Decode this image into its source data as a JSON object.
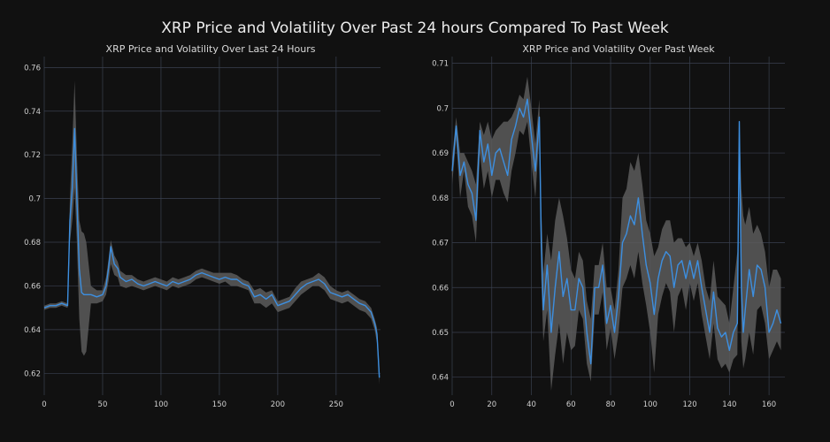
{
  "title": "XRP Price and Volatility Over Past 24 hours Compared To Past Week",
  "colors": {
    "background": "#111111",
    "price_line": "#3d8fe0",
    "volatility_band": "#5c5c5c",
    "grid": "#3a4150"
  },
  "chart_data": [
    {
      "type": "area",
      "title": "XRP Price and Volatility Over Last 24 Hours",
      "xlabel": "",
      "ylabel": "",
      "xlim": [
        0,
        288
      ],
      "ylim": [
        0.61,
        0.765
      ],
      "xticks": [
        0,
        50,
        100,
        150,
        200,
        250
      ],
      "yticks": [
        0.62,
        0.64,
        0.66,
        0.68,
        0.7,
        0.72,
        0.74,
        0.76
      ],
      "ytick_labels": [
        "0.62",
        "0.64",
        "0.66",
        "0.68",
        "0.7",
        "0.72",
        "0.74",
        "0.76"
      ],
      "grid": true,
      "series": [
        {
          "name": "price",
          "x": [
            0,
            5,
            10,
            15,
            20,
            22,
            24,
            26,
            28,
            30,
            32,
            34,
            36,
            40,
            45,
            50,
            53,
            55,
            57,
            60,
            63,
            65,
            70,
            75,
            80,
            85,
            90,
            95,
            100,
            105,
            110,
            115,
            120,
            125,
            130,
            135,
            140,
            145,
            150,
            155,
            160,
            165,
            170,
            175,
            180,
            185,
            190,
            195,
            200,
            205,
            210,
            215,
            220,
            225,
            230,
            235,
            240,
            245,
            250,
            255,
            260,
            265,
            270,
            275,
            280,
            283,
            285,
            286,
            287
          ],
          "values": [
            0.65,
            0.651,
            0.651,
            0.652,
            0.651,
            0.69,
            0.705,
            0.732,
            0.7,
            0.668,
            0.657,
            0.656,
            0.656,
            0.656,
            0.655,
            0.656,
            0.66,
            0.668,
            0.678,
            0.67,
            0.668,
            0.664,
            0.662,
            0.663,
            0.661,
            0.66,
            0.661,
            0.662,
            0.661,
            0.66,
            0.662,
            0.661,
            0.662,
            0.663,
            0.665,
            0.666,
            0.665,
            0.664,
            0.663,
            0.664,
            0.663,
            0.663,
            0.661,
            0.66,
            0.655,
            0.656,
            0.654,
            0.656,
            0.651,
            0.652,
            0.653,
            0.656,
            0.659,
            0.661,
            0.662,
            0.663,
            0.661,
            0.657,
            0.656,
            0.655,
            0.656,
            0.654,
            0.652,
            0.651,
            0.648,
            0.643,
            0.638,
            0.628,
            0.618
          ]
        },
        {
          "name": "volatility_upper",
          "x": [
            0,
            5,
            10,
            15,
            20,
            22,
            24,
            26,
            28,
            30,
            32,
            34,
            36,
            40,
            45,
            50,
            53,
            55,
            57,
            60,
            63,
            65,
            70,
            75,
            80,
            85,
            90,
            95,
            100,
            105,
            110,
            115,
            120,
            125,
            130,
            135,
            140,
            145,
            150,
            155,
            160,
            165,
            170,
            175,
            180,
            185,
            190,
            195,
            200,
            205,
            210,
            215,
            220,
            225,
            230,
            235,
            240,
            245,
            250,
            255,
            260,
            265,
            270,
            275,
            280,
            283,
            285,
            286,
            287
          ],
          "values": [
            0.651,
            0.652,
            0.652,
            0.653,
            0.652,
            0.7,
            0.725,
            0.754,
            0.72,
            0.69,
            0.685,
            0.684,
            0.68,
            0.66,
            0.658,
            0.658,
            0.664,
            0.672,
            0.681,
            0.674,
            0.671,
            0.667,
            0.665,
            0.665,
            0.663,
            0.662,
            0.663,
            0.664,
            0.663,
            0.662,
            0.664,
            0.663,
            0.664,
            0.665,
            0.667,
            0.668,
            0.667,
            0.666,
            0.666,
            0.666,
            0.666,
            0.665,
            0.663,
            0.662,
            0.658,
            0.659,
            0.657,
            0.658,
            0.653,
            0.654,
            0.655,
            0.659,
            0.662,
            0.663,
            0.664,
            0.666,
            0.664,
            0.66,
            0.658,
            0.657,
            0.658,
            0.656,
            0.654,
            0.653,
            0.65,
            0.645,
            0.641,
            0.632,
            0.622
          ]
        },
        {
          "name": "volatility_lower",
          "x": [
            0,
            5,
            10,
            15,
            20,
            22,
            24,
            26,
            28,
            30,
            32,
            34,
            36,
            40,
            45,
            50,
            53,
            55,
            57,
            60,
            63,
            65,
            70,
            75,
            80,
            85,
            90,
            95,
            100,
            105,
            110,
            115,
            120,
            125,
            130,
            135,
            140,
            145,
            150,
            155,
            160,
            165,
            170,
            175,
            180,
            185,
            190,
            195,
            200,
            205,
            210,
            215,
            220,
            225,
            230,
            235,
            240,
            245,
            250,
            255,
            260,
            265,
            270,
            275,
            280,
            283,
            285,
            286,
            287
          ],
          "values": [
            0.649,
            0.65,
            0.65,
            0.651,
            0.65,
            0.68,
            0.69,
            0.705,
            0.68,
            0.645,
            0.63,
            0.628,
            0.63,
            0.652,
            0.652,
            0.653,
            0.656,
            0.662,
            0.67,
            0.665,
            0.664,
            0.66,
            0.659,
            0.66,
            0.659,
            0.658,
            0.659,
            0.66,
            0.659,
            0.658,
            0.66,
            0.659,
            0.66,
            0.661,
            0.663,
            0.664,
            0.663,
            0.662,
            0.661,
            0.662,
            0.66,
            0.66,
            0.659,
            0.658,
            0.652,
            0.652,
            0.65,
            0.652,
            0.648,
            0.649,
            0.65,
            0.653,
            0.656,
            0.658,
            0.66,
            0.66,
            0.658,
            0.654,
            0.653,
            0.652,
            0.653,
            0.651,
            0.649,
            0.648,
            0.645,
            0.64,
            0.634,
            0.623,
            0.615
          ]
        }
      ]
    },
    {
      "type": "area",
      "title": "XRP Price and Volatility Over Past Week",
      "xlabel": "",
      "ylabel": "",
      "xlim": [
        0,
        168
      ],
      "ylim": [
        0.636,
        0.7115
      ],
      "xticks": [
        0,
        20,
        40,
        60,
        80,
        100,
        120,
        140,
        160
      ],
      "yticks": [
        0.64,
        0.65,
        0.66,
        0.67,
        0.68,
        0.69,
        0.7,
        0.71
      ],
      "ytick_labels": [
        "0.64",
        "0.65",
        "0.66",
        "0.67",
        "0.68",
        "0.69",
        "0.7",
        "0.71"
      ],
      "grid": true,
      "series": [
        {
          "name": "price",
          "x": [
            0,
            2,
            4,
            6,
            8,
            10,
            12,
            14,
            16,
            18,
            20,
            22,
            24,
            26,
            28,
            30,
            32,
            34,
            36,
            38,
            40,
            42,
            44,
            45,
            46,
            48,
            50,
            52,
            54,
            56,
            58,
            60,
            62,
            64,
            66,
            68,
            70,
            72,
            74,
            76,
            78,
            80,
            82,
            84,
            86,
            88,
            90,
            92,
            94,
            96,
            98,
            100,
            102,
            104,
            106,
            108,
            110,
            112,
            114,
            116,
            118,
            120,
            122,
            124,
            126,
            128,
            130,
            132,
            134,
            136,
            138,
            140,
            142,
            144,
            145,
            146,
            147,
            148,
            150,
            152,
            154,
            156,
            158,
            160,
            162,
            164,
            166
          ],
          "values": [
            0.686,
            0.696,
            0.685,
            0.688,
            0.683,
            0.681,
            0.675,
            0.695,
            0.688,
            0.692,
            0.685,
            0.69,
            0.691,
            0.688,
            0.685,
            0.693,
            0.696,
            0.7,
            0.698,
            0.702,
            0.694,
            0.686,
            0.698,
            0.67,
            0.655,
            0.665,
            0.65,
            0.66,
            0.668,
            0.658,
            0.662,
            0.655,
            0.655,
            0.662,
            0.66,
            0.65,
            0.643,
            0.66,
            0.66,
            0.665,
            0.652,
            0.656,
            0.65,
            0.658,
            0.67,
            0.672,
            0.676,
            0.674,
            0.68,
            0.672,
            0.665,
            0.661,
            0.654,
            0.662,
            0.666,
            0.668,
            0.667,
            0.66,
            0.665,
            0.666,
            0.662,
            0.666,
            0.662,
            0.666,
            0.66,
            0.655,
            0.65,
            0.659,
            0.651,
            0.649,
            0.65,
            0.646,
            0.65,
            0.652,
            0.697,
            0.66,
            0.65,
            0.655,
            0.664,
            0.658,
            0.665,
            0.664,
            0.66,
            0.65,
            0.652,
            0.655,
            0.652
          ]
        },
        {
          "name": "volatility_upper",
          "x": [
            0,
            2,
            4,
            6,
            8,
            10,
            12,
            14,
            16,
            18,
            20,
            22,
            24,
            26,
            28,
            30,
            32,
            34,
            36,
            38,
            40,
            42,
            44,
            45,
            46,
            48,
            50,
            52,
            54,
            56,
            58,
            60,
            62,
            64,
            66,
            68,
            70,
            72,
            74,
            76,
            78,
            80,
            82,
            84,
            86,
            88,
            90,
            92,
            94,
            96,
            98,
            100,
            102,
            104,
            106,
            108,
            110,
            112,
            114,
            116,
            118,
            120,
            122,
            124,
            126,
            128,
            130,
            132,
            134,
            136,
            138,
            140,
            142,
            144,
            145,
            146,
            147,
            148,
            150,
            152,
            154,
            156,
            158,
            160,
            162,
            164,
            166
          ],
          "values": [
            0.689,
            0.698,
            0.69,
            0.69,
            0.688,
            0.686,
            0.683,
            0.697,
            0.694,
            0.697,
            0.693,
            0.695,
            0.696,
            0.697,
            0.697,
            0.698,
            0.7,
            0.703,
            0.702,
            0.707,
            0.7,
            0.692,
            0.702,
            0.678,
            0.663,
            0.672,
            0.666,
            0.675,
            0.68,
            0.676,
            0.671,
            0.664,
            0.662,
            0.668,
            0.666,
            0.657,
            0.653,
            0.665,
            0.665,
            0.67,
            0.66,
            0.66,
            0.655,
            0.664,
            0.68,
            0.682,
            0.688,
            0.686,
            0.69,
            0.683,
            0.675,
            0.672,
            0.667,
            0.669,
            0.673,
            0.675,
            0.675,
            0.67,
            0.671,
            0.671,
            0.669,
            0.67,
            0.667,
            0.67,
            0.666,
            0.66,
            0.657,
            0.666,
            0.658,
            0.657,
            0.656,
            0.652,
            0.66,
            0.668,
            0.697,
            0.682,
            0.676,
            0.674,
            0.678,
            0.672,
            0.674,
            0.672,
            0.668,
            0.66,
            0.664,
            0.664,
            0.662
          ]
        },
        {
          "name": "volatility_lower",
          "x": [
            0,
            2,
            4,
            6,
            8,
            10,
            12,
            14,
            16,
            18,
            20,
            22,
            24,
            26,
            28,
            30,
            32,
            34,
            36,
            38,
            40,
            42,
            44,
            45,
            46,
            48,
            50,
            52,
            54,
            56,
            58,
            60,
            62,
            64,
            66,
            68,
            70,
            72,
            74,
            76,
            78,
            80,
            82,
            84,
            86,
            88,
            90,
            92,
            94,
            96,
            98,
            100,
            102,
            104,
            106,
            108,
            110,
            112,
            114,
            116,
            118,
            120,
            122,
            124,
            126,
            128,
            130,
            132,
            134,
            136,
            138,
            140,
            142,
            144,
            145,
            146,
            147,
            148,
            150,
            152,
            154,
            156,
            158,
            160,
            162,
            164,
            166
          ],
          "values": [
            0.683,
            0.693,
            0.68,
            0.686,
            0.678,
            0.676,
            0.67,
            0.69,
            0.682,
            0.686,
            0.68,
            0.684,
            0.684,
            0.681,
            0.679,
            0.686,
            0.69,
            0.695,
            0.694,
            0.697,
            0.688,
            0.68,
            0.694,
            0.662,
            0.648,
            0.655,
            0.637,
            0.645,
            0.652,
            0.643,
            0.65,
            0.646,
            0.647,
            0.655,
            0.653,
            0.643,
            0.639,
            0.654,
            0.654,
            0.659,
            0.646,
            0.651,
            0.644,
            0.65,
            0.66,
            0.662,
            0.665,
            0.662,
            0.668,
            0.661,
            0.656,
            0.65,
            0.641,
            0.654,
            0.658,
            0.661,
            0.659,
            0.65,
            0.658,
            0.66,
            0.655,
            0.661,
            0.657,
            0.661,
            0.654,
            0.649,
            0.644,
            0.652,
            0.644,
            0.642,
            0.643,
            0.641,
            0.644,
            0.645,
            0.697,
            0.648,
            0.642,
            0.644,
            0.65,
            0.645,
            0.655,
            0.656,
            0.652,
            0.644,
            0.646,
            0.648,
            0.646
          ]
        }
      ]
    }
  ]
}
